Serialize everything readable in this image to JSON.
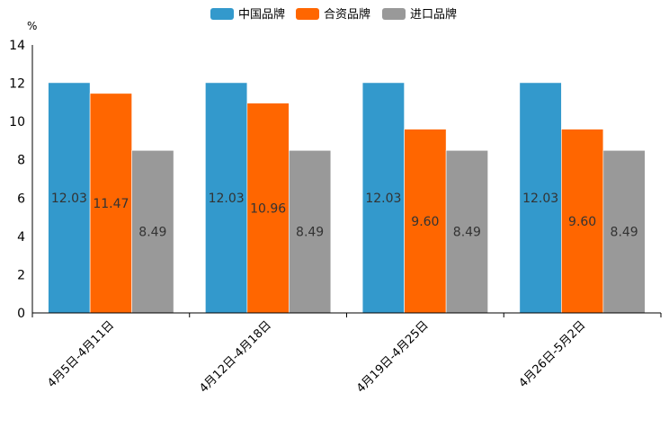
{
  "chart_data": {
    "type": "bar",
    "title": "",
    "xlabel": "",
    "ylabel": "%",
    "ylim": [
      0,
      14
    ],
    "yticks": [
      0,
      2,
      4,
      6,
      8,
      10,
      12,
      14
    ],
    "grid": false,
    "legend_position": "top-center",
    "categories": [
      "4月5日-4月11日",
      "4月12日-4月18日",
      "4月19日-4月25日",
      "4月26日-5月2日"
    ],
    "series": [
      {
        "name": "中国品牌",
        "color": "#3399CC",
        "values": [
          12.03,
          12.03,
          12.03,
          12.03
        ],
        "labels": [
          "12.03",
          "12.03",
          "12.03",
          "12.03"
        ]
      },
      {
        "name": "合资品牌",
        "color": "#FF6600",
        "values": [
          11.47,
          10.96,
          9.6,
          9.6
        ],
        "labels": [
          "11.47",
          "10.96",
          "9.60",
          "9.60"
        ]
      },
      {
        "name": "进口品牌",
        "color": "#999999",
        "values": [
          8.49,
          8.49,
          8.49,
          8.49
        ],
        "labels": [
          "8.49",
          "8.49",
          "8.49",
          "8.49"
        ]
      }
    ]
  }
}
